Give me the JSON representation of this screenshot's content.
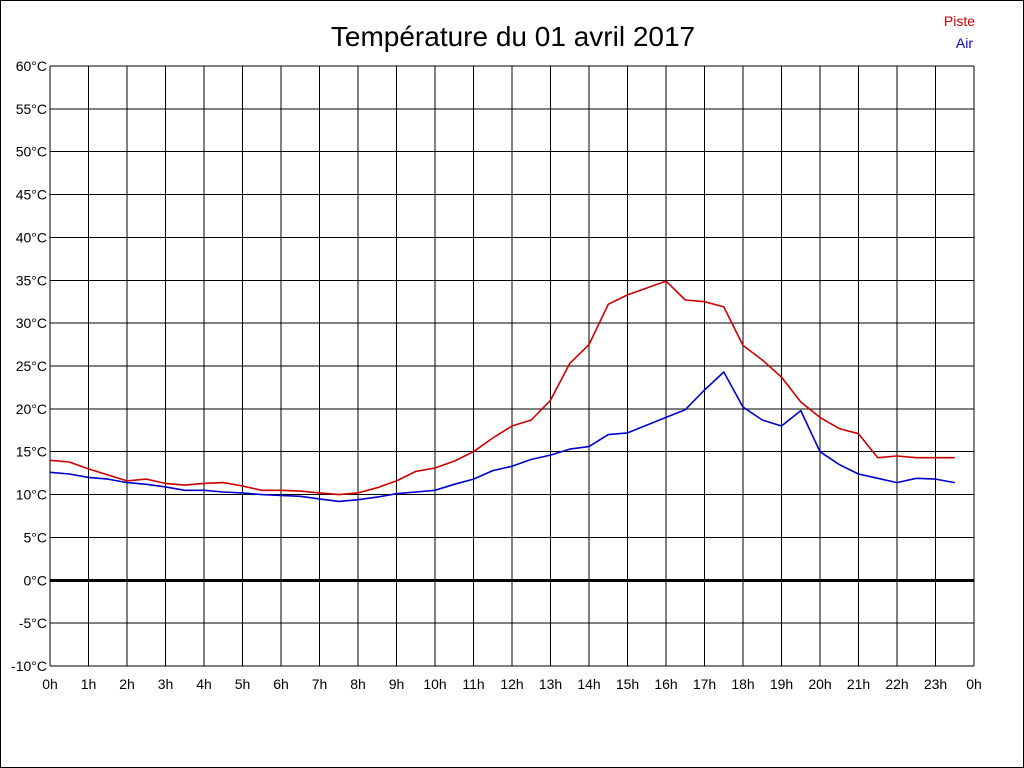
{
  "chart_data": {
    "type": "line",
    "title": "Température du 01 avril 2017",
    "xlabel": "",
    "ylabel": "",
    "x_tick_labels": [
      "0h",
      "1h",
      "2h",
      "3h",
      "4h",
      "5h",
      "6h",
      "7h",
      "8h",
      "9h",
      "10h",
      "11h",
      "12h",
      "13h",
      "14h",
      "15h",
      "16h",
      "17h",
      "18h",
      "19h",
      "20h",
      "21h",
      "22h",
      "23h",
      "0h"
    ],
    "y_tick_labels": [
      "60°C",
      "55°C",
      "50°C",
      "45°C",
      "40°C",
      "35°C",
      "30°C",
      "25°C",
      "20°C",
      "15°C",
      "10°C",
      "5°C",
      "0°C",
      "-5°C",
      "-10°C"
    ],
    "xlim": [
      0,
      24
    ],
    "ylim": [
      -10,
      60
    ],
    "grid": true,
    "legend_position": "top-right",
    "x": [
      0,
      0.5,
      1,
      1.5,
      2,
      2.5,
      3,
      3.5,
      4,
      4.5,
      5,
      5.5,
      6,
      6.5,
      7,
      7.5,
      8,
      8.5,
      9,
      9.5,
      10,
      10.5,
      11,
      11.5,
      12,
      12.5,
      13,
      13.5,
      14,
      14.5,
      15,
      15.5,
      16,
      16.5,
      17,
      17.5,
      18,
      18.5,
      19,
      19.5,
      20,
      20.5,
      21,
      21.5,
      22,
      22.5,
      23,
      23.5
    ],
    "series": [
      {
        "name": "Piste",
        "color": "#cc0000",
        "values": [
          14.0,
          13.8,
          13.0,
          12.3,
          11.6,
          11.8,
          11.3,
          11.1,
          11.3,
          11.4,
          11.0,
          10.5,
          10.5,
          10.4,
          10.2,
          10.0,
          10.2,
          10.8,
          11.6,
          12.7,
          13.1,
          13.9,
          15.0,
          16.6,
          18.0,
          18.7,
          21.0,
          25.3,
          27.5,
          32.2,
          33.3,
          34.1,
          34.9,
          32.7,
          32.5,
          31.9,
          27.4,
          25.7,
          23.7,
          20.8,
          19.0,
          17.7,
          17.1,
          14.3,
          14.5,
          14.3,
          14.3,
          14.3
        ]
      },
      {
        "name": "Air",
        "color": "#0000cc",
        "values": [
          12.6,
          12.4,
          12.0,
          11.8,
          11.4,
          11.2,
          10.9,
          10.5,
          10.5,
          10.3,
          10.2,
          10.0,
          9.9,
          9.8,
          9.5,
          9.2,
          9.4,
          9.7,
          10.1,
          10.3,
          10.5,
          11.2,
          11.8,
          12.8,
          13.3,
          14.1,
          14.6,
          15.3,
          15.6,
          17.0,
          17.2,
          18.1,
          19.0,
          19.9,
          22.2,
          24.3,
          20.2,
          18.7,
          18.0,
          19.8,
          15.0,
          13.5,
          12.4,
          11.9,
          11.4,
          11.9,
          11.8,
          11.4
        ]
      }
    ]
  }
}
